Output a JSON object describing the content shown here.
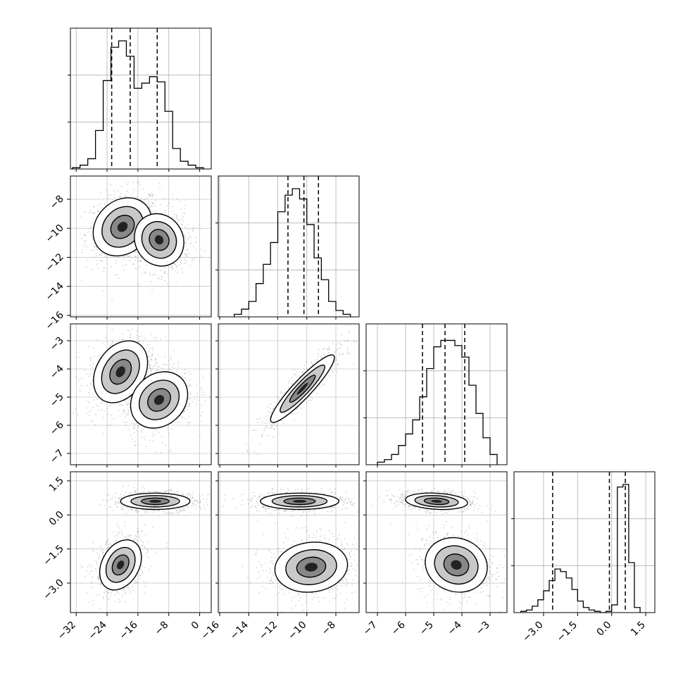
{
  "chart_data": {
    "type": "corner",
    "parameters": [
      {
        "name": "",
        "range": [
          -33.5,
          3.0
        ],
        "ticks": [
          -32,
          -24,
          -16,
          -8,
          0
        ],
        "tick_labels": [
          "−32",
          "−24",
          "−16",
          "−8",
          "0"
        ],
        "quantiles": [
          -22.8,
          -18.0,
          -11.0
        ],
        "histogram": {
          "edges": [
            -33,
            -31,
            -29,
            -27,
            -25,
            -23,
            -21,
            -19,
            -17,
            -15,
            -13,
            -11,
            -9,
            -7,
            -5,
            -3,
            -1,
            1
          ],
          "heights": [
            0.01,
            0.03,
            0.08,
            0.3,
            0.69,
            0.95,
            1.0,
            0.88,
            0.63,
            0.67,
            0.72,
            0.68,
            0.45,
            0.16,
            0.06,
            0.03,
            0.01
          ]
        }
      },
      {
        "name": "",
        "range": [
          -16.1,
          -6.4
        ],
        "ticks": [
          -16,
          -14,
          -12,
          -10,
          -8
        ],
        "tick_labels": [
          "−16",
          "−14",
          "−12",
          "−10",
          "−8"
        ],
        "quantiles": [
          -11.3,
          -10.2,
          -9.2
        ],
        "histogram": {
          "edges": [
            -15,
            -14.5,
            -14,
            -13.5,
            -13,
            -12.5,
            -12,
            -11.5,
            -11,
            -10.5,
            -10,
            -9.5,
            -9,
            -8.5,
            -8,
            -7.5,
            -7
          ],
          "heights": [
            0.02,
            0.06,
            0.12,
            0.26,
            0.41,
            0.58,
            0.82,
            0.95,
            1.0,
            0.92,
            0.72,
            0.46,
            0.29,
            0.12,
            0.05,
            0.02
          ]
        }
      },
      {
        "name": "",
        "range": [
          -7.4,
          -2.4
        ],
        "ticks": [
          -7,
          -6,
          -5,
          -4,
          -3
        ],
        "tick_labels": [
          "−7",
          "−6",
          "−5",
          "−4",
          "−3"
        ],
        "quantiles": [
          -5.4,
          -4.6,
          -3.9
        ],
        "histogram": {
          "edges": [
            -7.0,
            -6.75,
            -6.5,
            -6.25,
            -6.0,
            -5.75,
            -5.5,
            -5.25,
            -5.0,
            -4.75,
            -4.5,
            -4.25,
            -4.0,
            -3.75,
            -3.5,
            -3.25,
            -3.0,
            -2.75
          ],
          "heights": [
            0.02,
            0.04,
            0.08,
            0.15,
            0.24,
            0.35,
            0.53,
            0.75,
            0.92,
            0.97,
            0.97,
            0.93,
            0.84,
            0.62,
            0.4,
            0.21,
            0.08
          ]
        }
      },
      {
        "name": "",
        "range": [
          -4.3,
          1.9
        ],
        "ticks": [
          -3.0,
          -1.5,
          0.0,
          1.5
        ],
        "tick_labels": [
          "−3.0",
          "−1.5",
          "0.0",
          "1.5"
        ],
        "quantiles": [
          -2.6,
          -0.1,
          0.6
        ],
        "histogram": {
          "edges": [
            -4.0,
            -3.75,
            -3.5,
            -3.25,
            -3.0,
            -2.75,
            -2.5,
            -2.25,
            -2.0,
            -1.75,
            -1.5,
            -1.25,
            -1.0,
            -0.75,
            -0.5,
            -0.25,
            0.0,
            0.25,
            0.5,
            0.75,
            1.0,
            1.25
          ],
          "heights": [
            0.01,
            0.02,
            0.05,
            0.1,
            0.17,
            0.25,
            0.34,
            0.32,
            0.27,
            0.18,
            0.09,
            0.04,
            0.02,
            0.01,
            0.0,
            0.01,
            0.06,
            0.98,
            1.0,
            0.39,
            0.04
          ]
        }
      }
    ],
    "joint_2d": [
      {
        "row": 1,
        "col": 0,
        "modes": [
          {
            "x": -20.0,
            "y": -9.9,
            "sx": 3.8,
            "sy": 1.0,
            "rho": 0.2
          },
          {
            "x": -10.5,
            "y": -10.8,
            "sx": 3.2,
            "sy": 0.9,
            "rho": -0.1
          }
        ]
      },
      {
        "row": 2,
        "col": 0,
        "modes": [
          {
            "x": -20.5,
            "y": -4.1,
            "sx": 3.5,
            "sy": 0.55,
            "rho": 0.3
          },
          {
            "x": -10.5,
            "y": -5.1,
            "sx": 3.7,
            "sy": 0.5,
            "rho": 0.2
          }
        ]
      },
      {
        "row": 2,
        "col": 1,
        "modes": [
          {
            "x": -10.3,
            "y": -4.7,
            "sx": 1.1,
            "sy": 0.6,
            "rho": 0.92
          }
        ]
      },
      {
        "row": 3,
        "col": 0,
        "modes": [
          {
            "x": -11.5,
            "y": 0.6,
            "sx": 4.5,
            "sy": 0.18,
            "rho": 0.0
          },
          {
            "x": -20.5,
            "y": -2.2,
            "sx": 2.7,
            "sy": 0.55,
            "rho": 0.3
          }
        ]
      },
      {
        "row": 3,
        "col": 1,
        "modes": [
          {
            "x": -10.5,
            "y": 0.6,
            "sx": 1.35,
            "sy": 0.18,
            "rho": 0.0
          },
          {
            "x": -9.7,
            "y": -2.3,
            "sx": 1.25,
            "sy": 0.55,
            "rho": 0.1
          }
        ]
      },
      {
        "row": 3,
        "col": 2,
        "modes": [
          {
            "x": -4.9,
            "y": 0.6,
            "sx": 0.55,
            "sy": 0.18,
            "rho": -0.2
          },
          {
            "x": -4.2,
            "y": -2.2,
            "sx": 0.55,
            "sy": 0.6,
            "rho": -0.1
          }
        ]
      }
    ],
    "grid": true,
    "legend": "none",
    "colors": {
      "line": "#000000",
      "points": "#808080",
      "grid": "#b0b0b0",
      "background": "#ffffff"
    }
  }
}
